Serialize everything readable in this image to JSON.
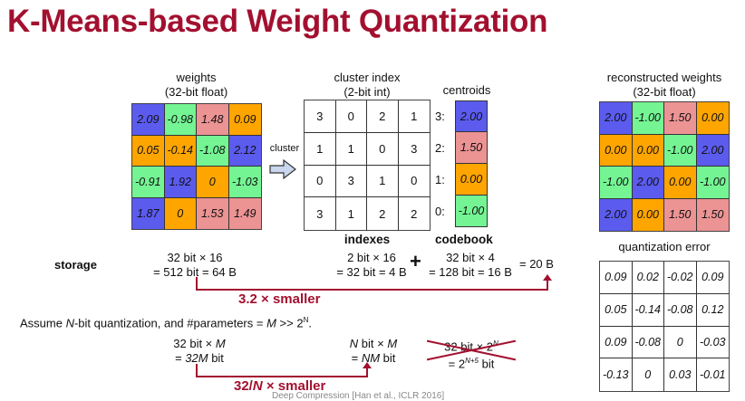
{
  "title": "K-Means-based Weight Quantization",
  "colors": {
    "title": "#a3102f",
    "cluster_3": "#5b5bee",
    "cluster_2": "#ec9394",
    "cluster_1": "#ffa500",
    "cluster_0": "#74f493"
  },
  "weights": {
    "label_line1": "weights",
    "label_line2": "(32-bit float)",
    "rows": [
      [
        {
          "v": "2.09",
          "c": 3
        },
        {
          "v": "-0.98",
          "c": 0
        },
        {
          "v": "1.48",
          "c": 2
        },
        {
          "v": "0.09",
          "c": 1
        }
      ],
      [
        {
          "v": "0.05",
          "c": 1
        },
        {
          "v": "-0.14",
          "c": 1
        },
        {
          "v": "-1.08",
          "c": 0
        },
        {
          "v": "2.12",
          "c": 3
        }
      ],
      [
        {
          "v": "-0.91",
          "c": 0
        },
        {
          "v": "1.92",
          "c": 3
        },
        {
          "v": "0",
          "c": 1
        },
        {
          "v": "-1.03",
          "c": 0
        }
      ],
      [
        {
          "v": "1.87",
          "c": 3
        },
        {
          "v": "0",
          "c": 1
        },
        {
          "v": "1.53",
          "c": 2
        },
        {
          "v": "1.49",
          "c": 2
        }
      ]
    ]
  },
  "cluster_arrow": {
    "label": "cluster",
    "icon": "right-arrow-icon"
  },
  "cluster_index": {
    "label_line1": "cluster index",
    "label_line2": "(2-bit int)",
    "caption": "indexes",
    "rows": [
      [
        "3",
        "0",
        "2",
        "1"
      ],
      [
        "1",
        "1",
        "0",
        "3"
      ],
      [
        "0",
        "3",
        "1",
        "0"
      ],
      [
        "3",
        "1",
        "2",
        "2"
      ]
    ]
  },
  "centroids": {
    "label": "centroids",
    "caption": "codebook",
    "items": [
      {
        "key": "3:",
        "value": "2.00",
        "c": 3
      },
      {
        "key": "2:",
        "value": "1.50",
        "c": 2
      },
      {
        "key": "1:",
        "value": "0.00",
        "c": 1
      },
      {
        "key": "0:",
        "value": "-1.00",
        "c": 0
      }
    ]
  },
  "reconstructed": {
    "label_line1": "reconstructed weights",
    "label_line2": "(32-bit float)",
    "rows": [
      [
        {
          "v": "2.00",
          "c": 3
        },
        {
          "v": "-1.00",
          "c": 0
        },
        {
          "v": "1.50",
          "c": 2
        },
        {
          "v": "0.00",
          "c": 1
        }
      ],
      [
        {
          "v": "0.00",
          "c": 1
        },
        {
          "v": "0.00",
          "c": 1
        },
        {
          "v": "-1.00",
          "c": 0
        },
        {
          "v": "2.00",
          "c": 3
        }
      ],
      [
        {
          "v": "-1.00",
          "c": 0
        },
        {
          "v": "2.00",
          "c": 3
        },
        {
          "v": "0.00",
          "c": 1
        },
        {
          "v": "-1.00",
          "c": 0
        }
      ],
      [
        {
          "v": "2.00",
          "c": 3
        },
        {
          "v": "0.00",
          "c": 1
        },
        {
          "v": "1.50",
          "c": 2
        },
        {
          "v": "1.50",
          "c": 2
        }
      ]
    ]
  },
  "quantization_error": {
    "label": "quantization error",
    "rows": [
      [
        "0.09",
        "0.02",
        "-0.02",
        "0.09"
      ],
      [
        "0.05",
        "-0.14",
        "-0.08",
        "0.12"
      ],
      [
        "0.09",
        "-0.08",
        "0",
        "-0.03"
      ],
      [
        "-0.13",
        "0",
        "0.03",
        "-0.01"
      ]
    ]
  },
  "storage": {
    "label": "storage",
    "original_line1": "32 bit × 16",
    "original_line2": "= 512 bit = 64 B",
    "indexes_line1": "2 bit × 16",
    "indexes_line2": "= 32 bit = 4 B",
    "plus": "+",
    "codebook_line1": "32 bit × 4",
    "codebook_line2": "= 128 bit = 16 B",
    "total": "= 20 B",
    "ratio": "3.2 × smaller"
  },
  "general": {
    "assumption_pre": "Assume ",
    "assumption_N": "N",
    "assumption_mid": "-bit quantization, and #parameters = ",
    "assumption_M": "M",
    "assumption_post": " >> 2",
    "assumption_sup": "N",
    "assumption_end": ".",
    "orig_line1_a": "32 bit × ",
    "orig_line1_b": "M",
    "orig_line2_a": "= ",
    "orig_line2_b": "32M",
    "orig_line2_c": " bit",
    "quant_line1_a": "N",
    "quant_line1_b": " bit × ",
    "quant_line1_c": "M",
    "quant_line2_a": "= ",
    "quant_line2_b": "NM",
    "quant_line2_c": " bit",
    "codebook_line1_a": "32 bit × 2",
    "codebook_line1_sup": "N",
    "codebook_line2_a": "= 2",
    "codebook_line2_sup": "N+5",
    "codebook_line2_b": " bit",
    "ratio_a": "32/",
    "ratio_N": "N",
    "ratio_b": " × smaller"
  },
  "footer": "Deep Compression [Han et al., ICLR 2016]"
}
